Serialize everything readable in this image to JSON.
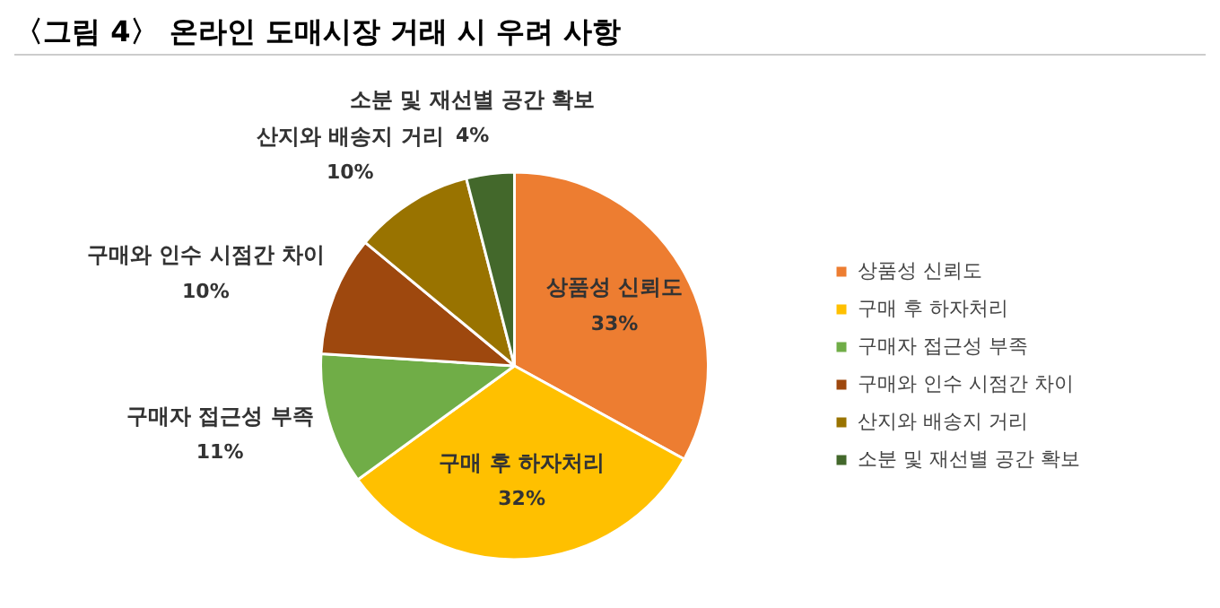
{
  "chart_data": {
    "type": "pie",
    "title": "〈그림 4〉 온라인 도매시장 거래 시 우려 사항",
    "categories": [
      "상품성 신뢰도",
      "구매 후 하자처리",
      "구매자 접근성 부족",
      "구매와 인수 시점간 차이",
      "산지와 배송지 거리",
      "소분 및 재선별 공간 확보"
    ],
    "values": [
      33,
      32,
      11,
      10,
      10,
      4
    ],
    "colors": [
      "#ed7d31",
      "#ffc000",
      "#70ad47",
      "#9e480e",
      "#997300",
      "#43682b"
    ],
    "value_labels": [
      "33%",
      "32%",
      "11%",
      "10%",
      "10%",
      "4%"
    ],
    "legend": "right"
  }
}
